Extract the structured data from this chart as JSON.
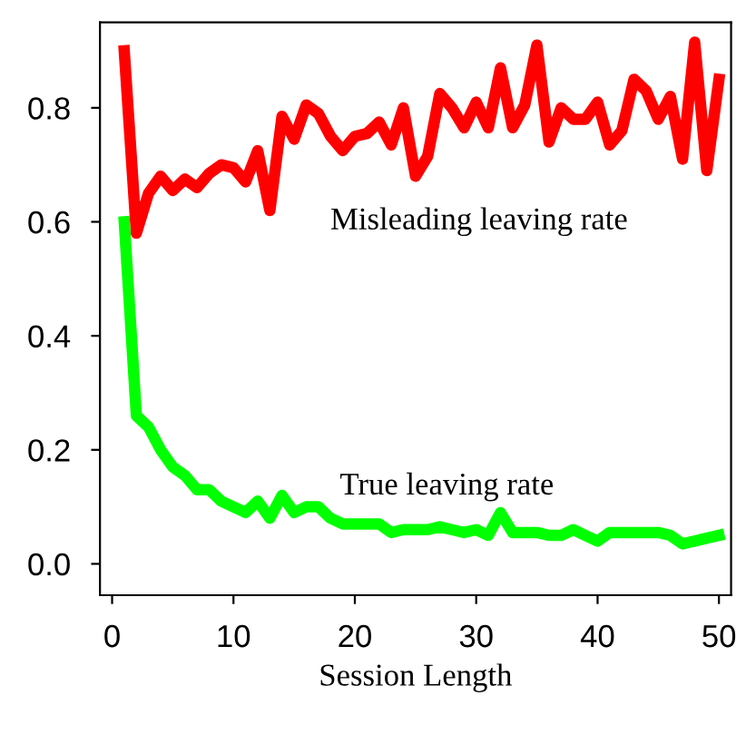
{
  "chart_data": {
    "type": "line",
    "xlabel": "Session Length",
    "x": [
      1,
      2,
      3,
      4,
      5,
      6,
      7,
      8,
      9,
      10,
      11,
      12,
      13,
      14,
      15,
      16,
      17,
      18,
      19,
      20,
      21,
      22,
      23,
      24,
      25,
      26,
      27,
      28,
      29,
      30,
      31,
      32,
      33,
      34,
      35,
      36,
      37,
      38,
      39,
      40,
      41,
      42,
      43,
      44,
      45,
      46,
      47,
      48,
      49,
      50
    ],
    "series": [
      {
        "name": "Misleading leaving rate",
        "color": "#ff0000",
        "values": [
          0.9,
          0.58,
          0.65,
          0.68,
          0.655,
          0.675,
          0.66,
          0.685,
          0.7,
          0.695,
          0.67,
          0.725,
          0.62,
          0.785,
          0.745,
          0.805,
          0.79,
          0.75,
          0.725,
          0.75,
          0.755,
          0.775,
          0.735,
          0.8,
          0.68,
          0.715,
          0.825,
          0.8,
          0.765,
          0.81,
          0.765,
          0.87,
          0.765,
          0.805,
          0.91,
          0.74,
          0.8,
          0.78,
          0.78,
          0.81,
          0.735,
          0.76,
          0.85,
          0.83,
          0.78,
          0.82,
          0.71,
          0.915,
          0.69,
          0.85
        ]
      },
      {
        "name": "True leaving rate",
        "color": "#00ff00",
        "values": [
          0.6,
          0.26,
          0.24,
          0.2,
          0.17,
          0.155,
          0.13,
          0.13,
          0.11,
          0.1,
          0.09,
          0.11,
          0.08,
          0.12,
          0.09,
          0.1,
          0.1,
          0.08,
          0.07,
          0.07,
          0.07,
          0.07,
          0.055,
          0.06,
          0.06,
          0.06,
          0.065,
          0.06,
          0.055,
          0.06,
          0.05,
          0.09,
          0.055,
          0.055,
          0.055,
          0.05,
          0.05,
          0.06,
          0.05,
          0.04,
          0.055,
          0.055,
          0.055,
          0.055,
          0.055,
          0.05,
          0.035,
          0.04,
          0.045,
          0.05
        ]
      }
    ],
    "xlim": [
      -1,
      51
    ],
    "xticks": [
      0,
      10,
      20,
      30,
      40,
      50
    ],
    "ylim": [
      -0.055,
      0.95
    ],
    "yticks": [
      {
        "value": 0,
        "label": "0.0"
      },
      0.2,
      0.4,
      0.6,
      0.8
    ],
    "grid": false,
    "legend": false,
    "marker": "none",
    "line_style": "solid"
  }
}
